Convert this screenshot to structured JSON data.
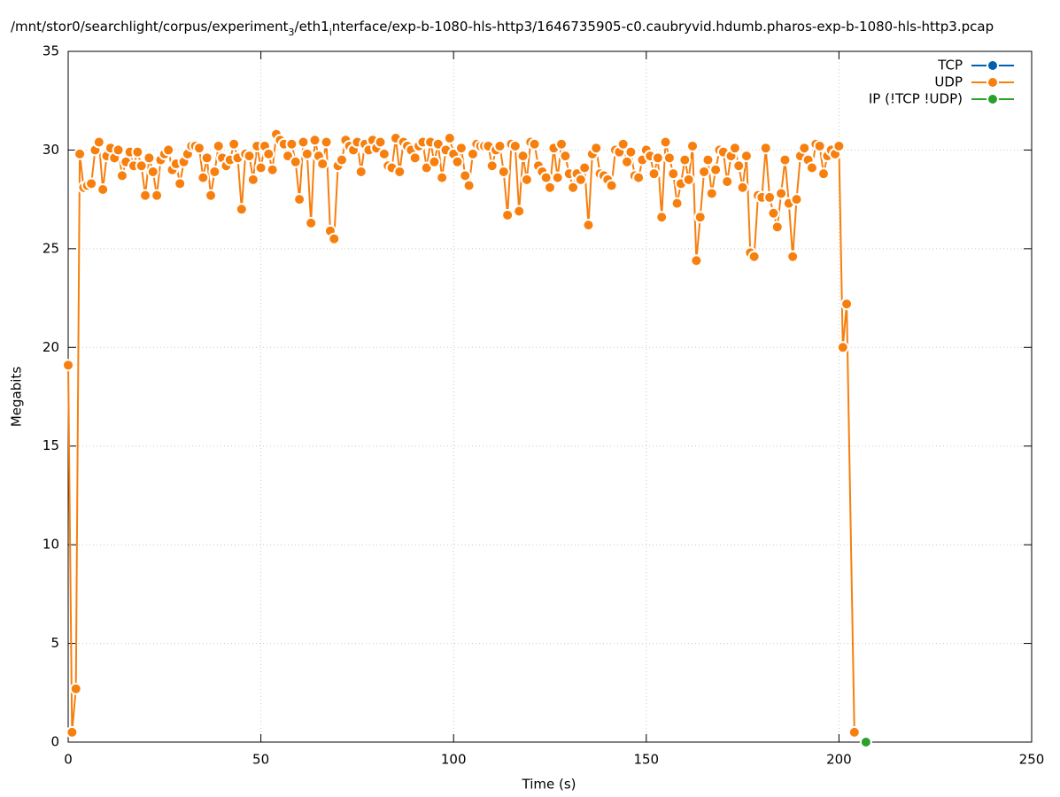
{
  "chart_data": {
    "type": "line",
    "title_parts": [
      "/mnt/stor0/searchlight/corpus/experiment",
      "3",
      "/eth1",
      "i",
      "nterface/exp-b-1080-hls-http3/1646735905-c0.caubryvid.hdumb.pharos-exp-b-1080-hls-http3.pcap"
    ],
    "xlabel": "Time (s)",
    "ylabel": "Megabits",
    "xlim": [
      0,
      250
    ],
    "xticks": [
      0,
      50,
      100,
      150,
      200,
      250
    ],
    "ylim": [
      0,
      35
    ],
    "yticks": [
      0,
      5,
      10,
      15,
      20,
      25,
      30,
      35
    ],
    "grid": true,
    "legend": "top-right",
    "series": [
      {
        "name": "TCP",
        "color": "#0060ad",
        "x": [],
        "values": []
      },
      {
        "name": "UDP",
        "color": "#f77f0e",
        "x": [
          0,
          1,
          2,
          3,
          4,
          5,
          6,
          7,
          8,
          9,
          10,
          11,
          12,
          13,
          14,
          15,
          16,
          17,
          18,
          19,
          20,
          21,
          22,
          23,
          24,
          25,
          26,
          27,
          28,
          29,
          30,
          31,
          32,
          33,
          34,
          35,
          36,
          37,
          38,
          39,
          40,
          41,
          42,
          43,
          44,
          45,
          46,
          47,
          48,
          49,
          50,
          51,
          52,
          53,
          54,
          55,
          56,
          57,
          58,
          59,
          60,
          61,
          62,
          63,
          64,
          65,
          66,
          67,
          68,
          69,
          70,
          71,
          72,
          73,
          74,
          75,
          76,
          77,
          78,
          79,
          80,
          81,
          82,
          83,
          84,
          85,
          86,
          87,
          88,
          89,
          90,
          91,
          92,
          93,
          94,
          95,
          96,
          97,
          98,
          99,
          100,
          101,
          102,
          103,
          104,
          105,
          106,
          107,
          108,
          109,
          110,
          111,
          112,
          113,
          114,
          115,
          116,
          117,
          118,
          119,
          120,
          121,
          122,
          123,
          124,
          125,
          126,
          127,
          128,
          129,
          130,
          131,
          132,
          133,
          134,
          135,
          136,
          137,
          138,
          139,
          140,
          141,
          142,
          143,
          144,
          145,
          146,
          147,
          148,
          149,
          150,
          151,
          152,
          153,
          154,
          155,
          156,
          157,
          158,
          159,
          160,
          161,
          162,
          163,
          164,
          165,
          166,
          167,
          168,
          169,
          170,
          171,
          172,
          173,
          174,
          175,
          176,
          177,
          178,
          179,
          180,
          181,
          182,
          183,
          184,
          185,
          186,
          187,
          188,
          189,
          190,
          191,
          192,
          193,
          194,
          195,
          196,
          197,
          198,
          199,
          200,
          201,
          202,
          204
        ],
        "values": [
          19.1,
          0.5,
          2.7,
          29.8,
          28.1,
          28.2,
          28.3,
          30.0,
          30.4,
          28.0,
          29.7,
          30.1,
          29.6,
          30.0,
          28.7,
          29.4,
          29.9,
          29.2,
          29.9,
          29.2,
          27.7,
          29.6,
          28.9,
          27.7,
          29.5,
          29.8,
          30.0,
          29.0,
          29.3,
          28.3,
          29.4,
          29.8,
          30.2,
          30.2,
          30.1,
          28.6,
          29.6,
          27.7,
          28.9,
          30.2,
          29.6,
          29.2,
          29.5,
          30.3,
          29.6,
          27.0,
          29.8,
          29.7,
          28.5,
          30.2,
          29.1,
          30.2,
          29.8,
          29.0,
          30.8,
          30.5,
          30.3,
          29.7,
          30.3,
          29.4,
          27.5,
          30.4,
          29.8,
          26.3,
          30.5,
          29.7,
          29.3,
          30.4,
          25.9,
          25.5,
          29.2,
          29.5,
          30.5,
          30.2,
          30.0,
          30.4,
          28.9,
          30.3,
          30.0,
          30.5,
          30.1,
          30.4,
          29.8,
          29.2,
          29.1,
          30.6,
          28.9,
          30.4,
          30.2,
          30.0,
          29.6,
          30.2,
          30.4,
          29.1,
          30.4,
          29.4,
          30.3,
          28.6,
          30.0,
          30.6,
          29.8,
          29.4,
          30.1,
          28.7,
          28.2,
          29.8,
          30.3,
          30.2,
          30.2,
          30.2,
          29.2,
          30.0,
          30.2,
          28.9,
          26.7,
          30.3,
          30.2,
          26.9,
          29.7,
          28.5,
          30.4,
          30.3,
          29.2,
          28.9,
          28.6,
          28.1,
          30.1,
          28.6,
          30.3,
          29.7,
          28.8,
          28.1,
          28.8,
          28.5,
          29.1,
          26.2,
          29.8,
          30.1,
          28.8,
          28.7,
          28.5,
          28.2,
          30.0,
          29.9,
          30.3,
          29.4,
          29.9,
          28.7,
          28.6,
          29.5,
          30.0,
          29.7,
          28.8,
          29.6,
          26.6,
          30.4,
          29.6,
          28.8,
          27.3,
          28.3,
          29.5,
          28.5,
          30.2,
          24.4,
          26.6,
          28.9,
          29.5,
          27.8,
          29.0,
          30.0,
          29.9,
          28.4,
          29.7,
          30.1,
          29.2,
          28.1,
          29.7,
          24.8,
          24.6,
          27.7,
          27.6,
          30.1,
          27.6,
          26.8,
          26.1,
          27.8,
          29.5,
          27.3,
          24.6,
          27.5,
          29.7,
          30.1,
          29.5,
          29.1,
          30.3,
          30.2,
          28.8,
          29.7,
          30.0,
          29.8,
          30.2,
          20.0,
          22.2,
          0.5
        ]
      },
      {
        "name": "IP (!TCP  !UDP)",
        "color": "#2ca02c",
        "x": [
          207
        ],
        "values": [
          0
        ]
      }
    ]
  }
}
